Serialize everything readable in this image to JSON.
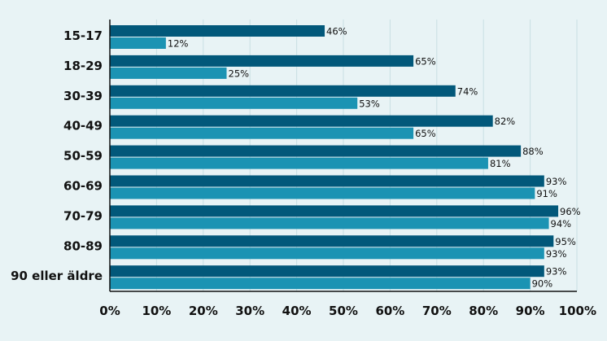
{
  "chart_data": {
    "type": "bar",
    "orientation": "horizontal",
    "categories": [
      "15-17",
      "18-29",
      "30-39",
      "40-49",
      "50-59",
      "60-69",
      "70-79",
      "80-89",
      "90 eller äldre"
    ],
    "series": [
      {
        "values": [
          46,
          65,
          74,
          82,
          88,
          93,
          96,
          95,
          93
        ],
        "color": "#02587a"
      },
      {
        "values": [
          12,
          25,
          53,
          65,
          81,
          91,
          94,
          93,
          90
        ],
        "color": "#1b93b3"
      }
    ],
    "value_suffix": "%",
    "xlim": [
      0,
      100
    ],
    "x_ticks": [
      "0%",
      "10%",
      "20%",
      "30%",
      "40%",
      "50%",
      "60%",
      "70%",
      "80%",
      "90%",
      "100%"
    ],
    "grid": true,
    "legend": "none",
    "title": "",
    "xlabel": "",
    "ylabel": ""
  }
}
